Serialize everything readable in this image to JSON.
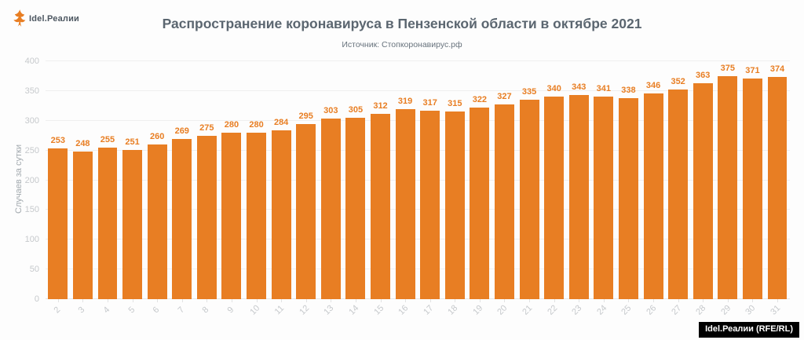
{
  "logo": {
    "text": "Idel.Реалии"
  },
  "footer": {
    "credit": "Idel.Реалии (RFE/RL)"
  },
  "colors": {
    "bar_orange": "#E87E23",
    "title_text": "#5B6670",
    "subtitle_text": "#68737D",
    "axis_label_text": "#C6C9CC",
    "y_axis_title_text": "#A3AAAF",
    "gridline": "#EFEFEF",
    "credit_bg": "#000000",
    "credit_text": "#FFFFFF",
    "background": "#FDFDFD"
  },
  "chart_data": {
    "type": "bar",
    "title": "Распространение коронавируса в Пензенской области в октябре 2021",
    "subtitle": "Источник: Стопкоронавирус.рф",
    "xlabel": "",
    "ylabel": "Случаев за сутки",
    "categories": [
      "2",
      "3",
      "4",
      "5",
      "6",
      "7",
      "8",
      "9",
      "10",
      "11",
      "12",
      "13",
      "14",
      "15",
      "16",
      "17",
      "18",
      "19",
      "20",
      "21",
      "22",
      "23",
      "24",
      "25",
      "26",
      "27",
      "28",
      "29",
      "30",
      "31"
    ],
    "values": [
      253,
      248,
      255,
      251,
      260,
      269,
      275,
      280,
      280,
      284,
      295,
      303,
      305,
      312,
      319,
      317,
      315,
      322,
      327,
      335,
      340,
      343,
      341,
      338,
      346,
      352,
      363,
      375,
      371,
      374
    ],
    "ylim": [
      0,
      400
    ],
    "yticks": [
      0,
      50,
      100,
      150,
      200,
      250,
      300,
      350,
      400
    ],
    "grid": true,
    "legend": "none",
    "bar_color": "#E87E23",
    "value_labels": true,
    "x_label_rotation": -45
  }
}
